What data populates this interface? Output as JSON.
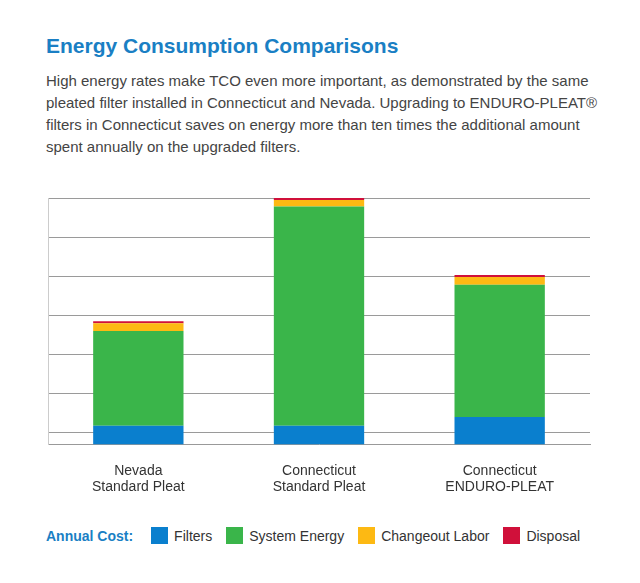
{
  "chart_data": {
    "type": "bar",
    "title": "Energy Consumption Comparisons",
    "subtitle": "High energy rates make TCO even more important, as demonstrated by the same pleated filter installed in Connecticut and Nevada. Upgrading to ENDURO-PLEAT® filters in Connecticut saves on energy more than ten times the additional amount spent annually on the upgraded filters.",
    "categories": [
      [
        "Nevada",
        "Standard Pleat"
      ],
      [
        "Connecticut",
        "Standard Pleat"
      ],
      [
        "Connecticut",
        "ENDURO-PLEAT"
      ]
    ],
    "series": [
      {
        "name": "Filters",
        "color": "#0a7fce",
        "values": [
          0.48,
          0.48,
          0.7
        ]
      },
      {
        "name": "System Energy",
        "color": "#3ab54a",
        "values": [
          2.42,
          5.6,
          3.38
        ]
      },
      {
        "name": "Changeout Labor",
        "color": "#fdb913",
        "values": [
          0.2,
          0.17,
          0.2
        ]
      },
      {
        "name": "Disposal",
        "color": "#d0103a",
        "values": [
          0.05,
          0.05,
          0.05
        ]
      }
    ],
    "legend_title": "Annual Cost:",
    "legend": "bottom",
    "stacked": true,
    "grid": true,
    "tick_labels": "x",
    "data_labels": false,
    "ylim": [
      0,
      6.3
    ],
    "yticks": [
      0.3,
      1.3,
      2.3,
      3.3,
      4.3,
      5.3,
      6.3
    ]
  }
}
